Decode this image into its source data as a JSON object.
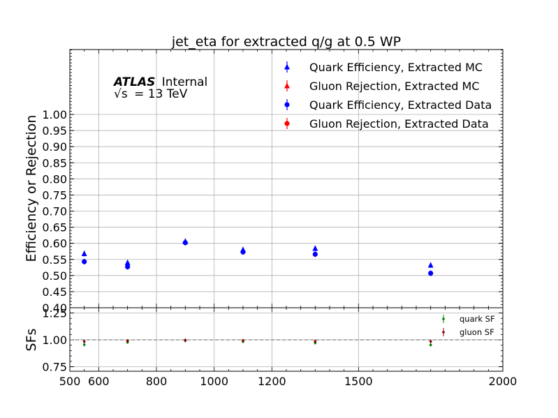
{
  "chart_data": [
    {
      "type": "scatter",
      "title": "jet_eta for extracted q/g at 0.5 WP",
      "ylabel": "Efficiency or Rejection",
      "experiment_label": "ATLAS",
      "experiment_status": "Internal",
      "energy_label_prefix": "√s",
      "energy_label_value": "= 13 TeV",
      "xlim": [
        500,
        2000
      ],
      "ylim": [
        0.4,
        1.0
      ],
      "yticks": [
        "1.00",
        "0.95",
        "0.90",
        "0.85",
        "0.80",
        "0.75",
        "0.70",
        "0.65",
        "0.60",
        "0.55",
        "0.50",
        "0.45",
        "0.40"
      ],
      "grid": true,
      "legend_position": "top-right",
      "x": [
        550,
        700,
        900,
        1100,
        1350,
        1750
      ],
      "series": [
        {
          "name": "Quark Efficiency, Extracted MC",
          "marker": "triangle",
          "color": "#0000ff",
          "values": [
            0.568,
            0.54,
            0.606,
            0.58,
            0.584,
            0.532
          ]
        },
        {
          "name": "Gluon Rejection, Extracted MC",
          "marker": "triangle",
          "color": "#ff0000",
          "values": [
            null,
            null,
            null,
            null,
            null,
            null
          ]
        },
        {
          "name": "Quark Efficiency, Extracted Data",
          "marker": "circle",
          "color": "#0000ff",
          "values": [
            0.543,
            0.527,
            0.602,
            0.573,
            0.566,
            0.507
          ]
        },
        {
          "name": "Gluon Rejection, Extracted Data",
          "marker": "circle",
          "color": "#ff0000",
          "values": [
            null,
            null,
            null,
            null,
            null,
            null
          ]
        }
      ]
    },
    {
      "type": "scatter",
      "ylabel": "SFs",
      "xlim": [
        500,
        2000
      ],
      "ylim": [
        0.7,
        1.28
      ],
      "xticks": [
        "500",
        "600",
        "800",
        "1000",
        "1200",
        "1500",
        "2000"
      ],
      "yticks": [
        "1.25",
        "1.00",
        "0.75"
      ],
      "reference_line": 1.0,
      "grid": true,
      "legend_position": "top-right",
      "x": [
        550,
        700,
        900,
        1100,
        1350,
        1750
      ],
      "series": [
        {
          "name": "quark SF",
          "color": "#008000",
          "values": [
            0.955,
            0.978,
            0.993,
            0.985,
            0.972,
            0.953
          ]
        },
        {
          "name": "gluon SF",
          "color": "#8b0000",
          "values": [
            0.985,
            0.99,
            0.997,
            0.993,
            0.986,
            0.985
          ]
        }
      ]
    }
  ]
}
